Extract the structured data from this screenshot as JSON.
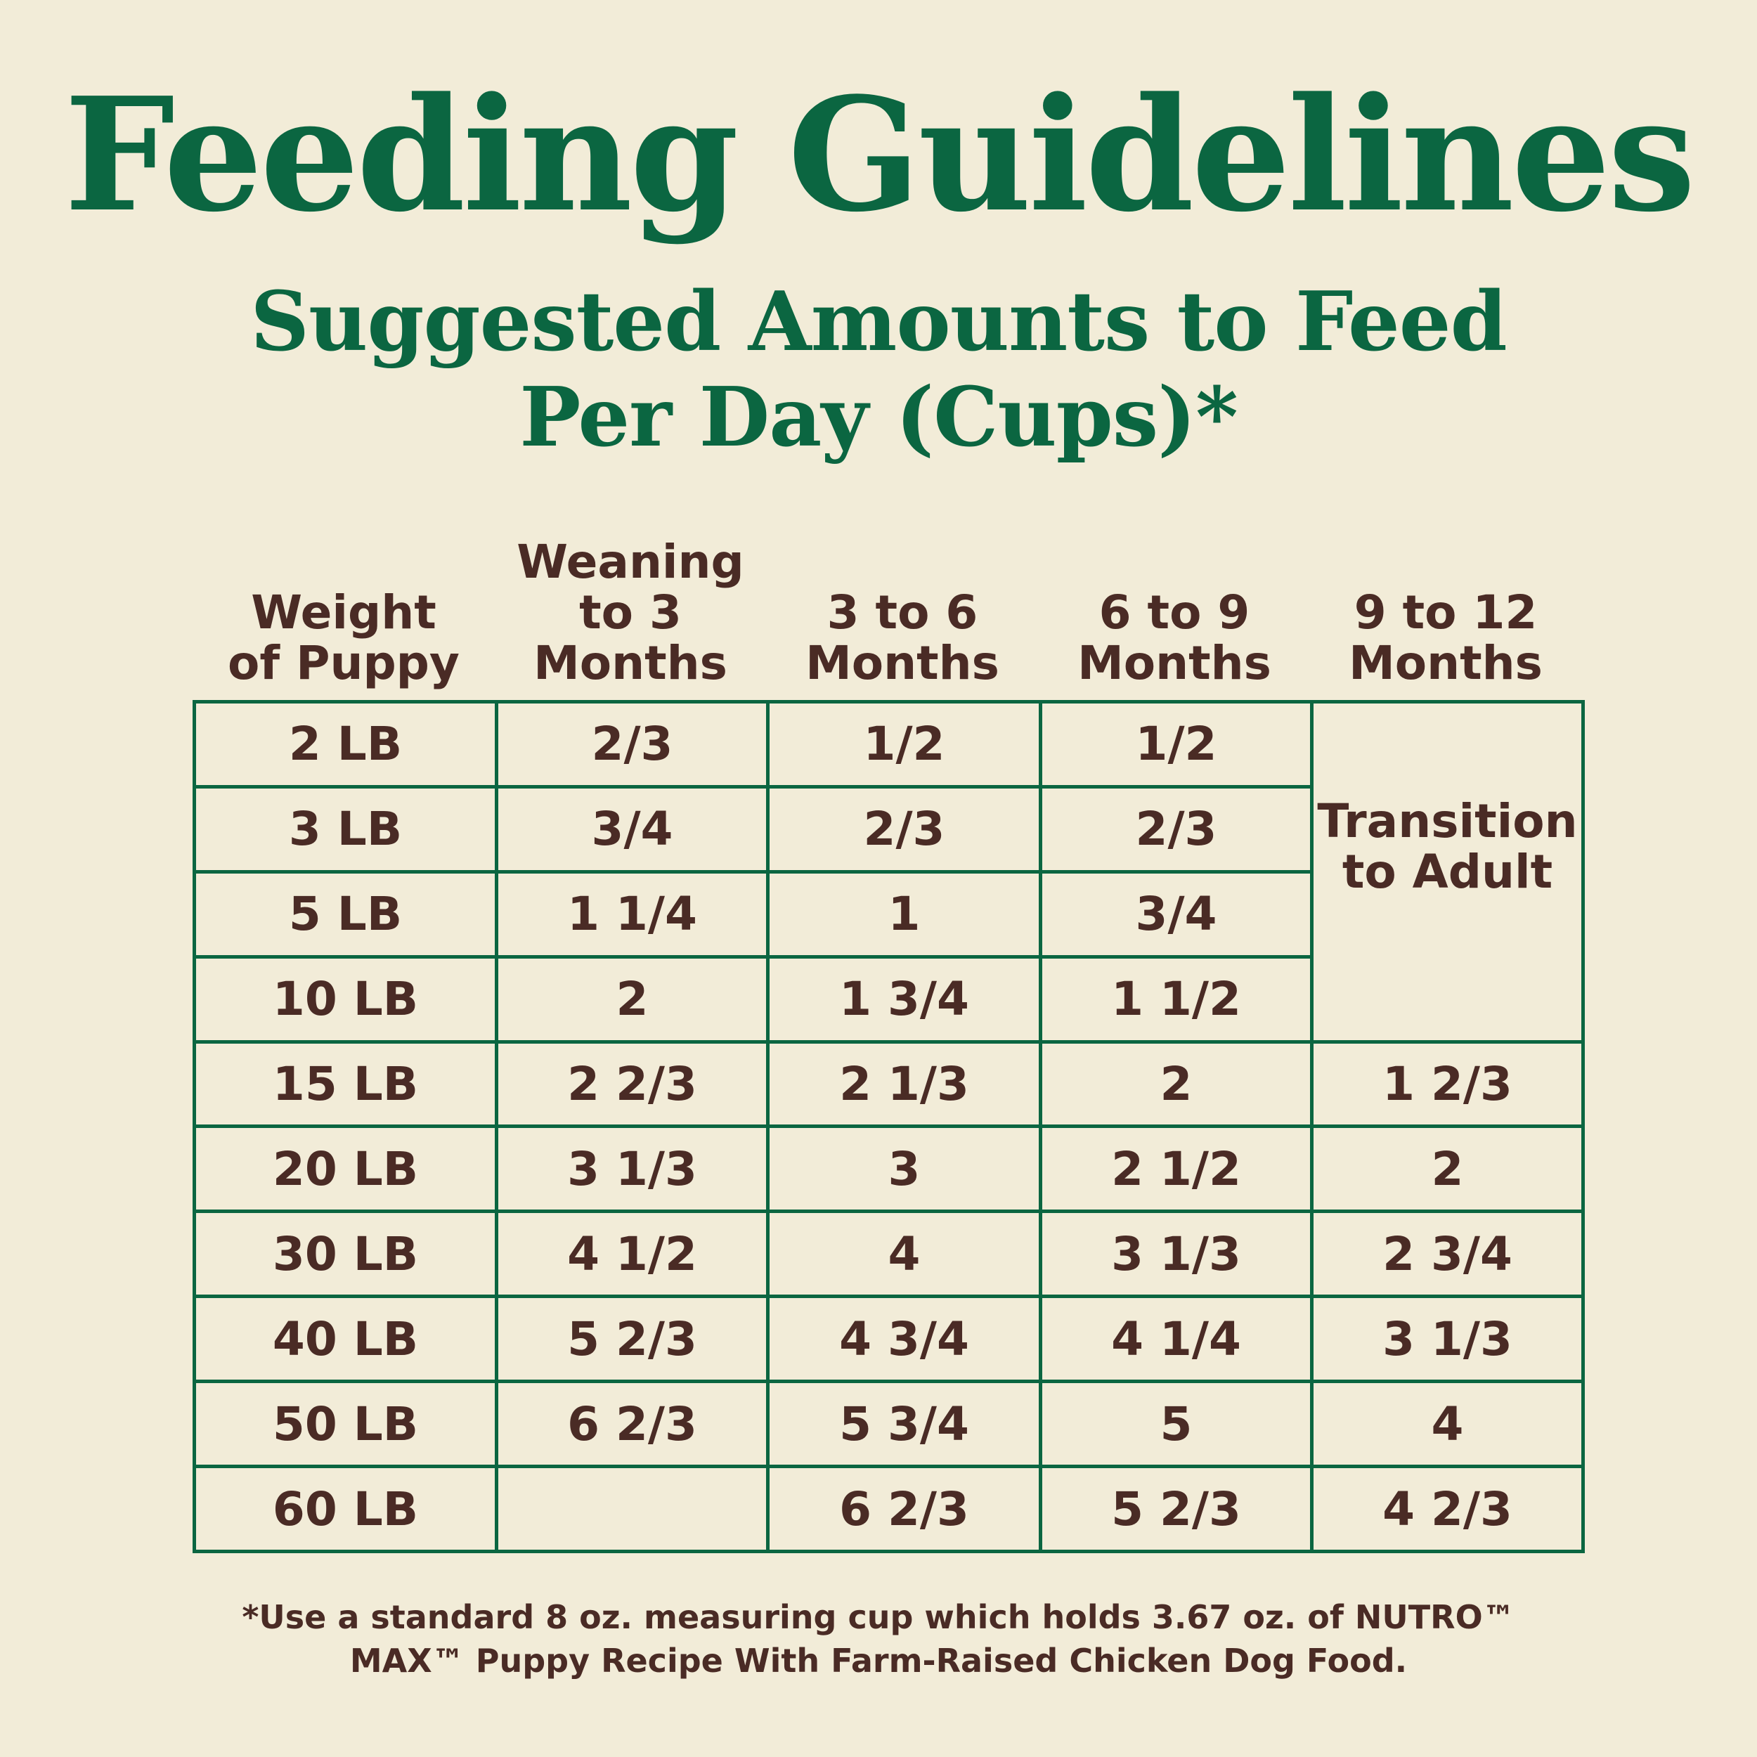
{
  "title": "Feeding Guidelines",
  "subtitle": {
    "line1": "Suggested Amounts to Feed",
    "line2": "Per Day (Cups)*"
  },
  "columns": [
    "Weight\nof Puppy",
    "Weaning\nto 3\nMonths",
    "3 to 6\nMonths",
    "6 to 9\nMonths",
    "9 to 12\nMonths"
  ],
  "rows": [
    [
      "2 LB",
      "2/3",
      "1/2",
      "1/2",
      ""
    ],
    [
      "3 LB",
      "3/4",
      "2/3",
      "2/3",
      ""
    ],
    [
      "5 LB",
      "1 1/4",
      "1",
      "3/4",
      ""
    ],
    [
      "10 LB",
      "2",
      "1 3/4",
      "1 1/2",
      ""
    ],
    [
      "15 LB",
      "2 2/3",
      "2 1/3",
      "2",
      "1 2/3"
    ],
    [
      "20 LB",
      "3 1/3",
      "3",
      "2 1/2",
      "2"
    ],
    [
      "30 LB",
      "4 1/2",
      "4",
      "3 1/3",
      "2 3/4"
    ],
    [
      "40 LB",
      "5 2/3",
      "4 3/4",
      "4 1/4",
      "3 1/3"
    ],
    [
      "50 LB",
      "6 2/3",
      "5 3/4",
      "5",
      "4"
    ],
    [
      "60 LB",
      "",
      "6 2/3",
      "5 2/3",
      "4 2/3"
    ]
  ],
  "merged_note": "Transition\nto Adult",
  "footnote": {
    "line1": "*Use a standard 8 oz. measuring cup which holds 3.67 oz. of NUTRO™",
    "line2": "MAX™ Puppy Recipe With Farm-Raised Chicken Dog Food."
  },
  "colors": {
    "background": "#f2ecd8",
    "green": "#0b6641",
    "brown": "#4a2b25"
  }
}
